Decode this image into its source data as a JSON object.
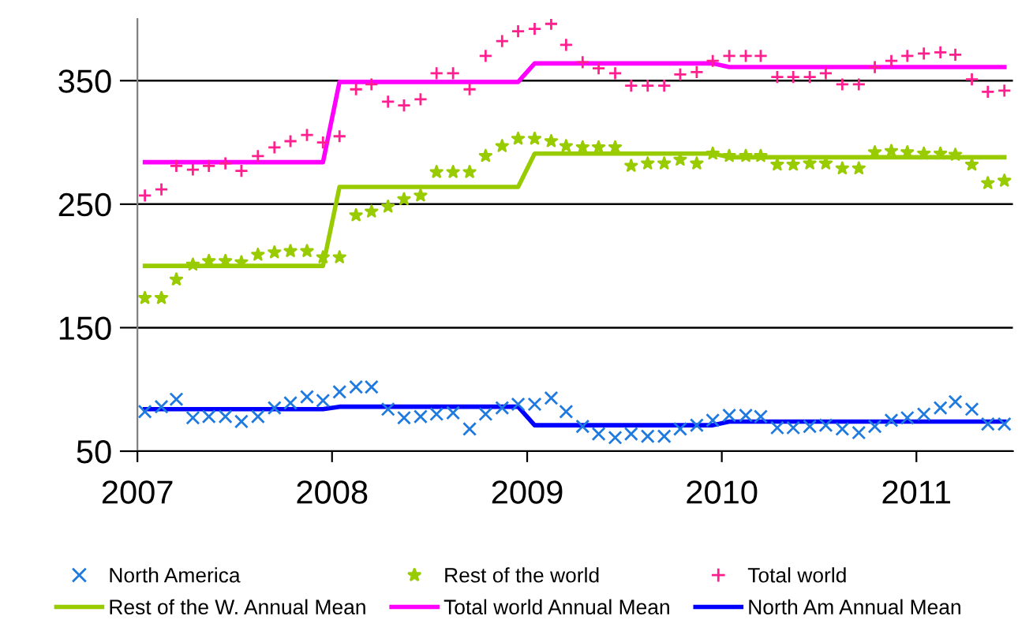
{
  "chart_data": {
    "type": "scatter",
    "x": [
      "2007-01-15",
      "2007-02-15",
      "2007-03-15",
      "2007-04-15",
      "2007-05-15",
      "2007-06-15",
      "2007-07-15",
      "2007-08-15",
      "2007-09-15",
      "2007-10-15",
      "2007-11-15",
      "2007-12-15",
      "2008-01-15",
      "2008-02-15",
      "2008-03-15",
      "2008-04-15",
      "2008-05-15",
      "2008-06-15",
      "2008-07-15",
      "2008-08-15",
      "2008-09-15",
      "2008-10-15",
      "2008-11-15",
      "2008-12-15",
      "2009-01-15",
      "2009-02-15",
      "2009-03-15",
      "2009-04-15",
      "2009-05-15",
      "2009-06-15",
      "2009-07-15",
      "2009-08-15",
      "2009-09-15",
      "2009-10-15",
      "2009-11-15",
      "2009-12-15",
      "2010-01-15",
      "2010-02-15",
      "2010-03-15",
      "2010-04-15",
      "2010-05-15",
      "2010-06-15",
      "2010-07-15",
      "2010-08-15",
      "2010-09-15",
      "2010-10-15",
      "2010-11-15",
      "2010-12-15",
      "2011-01-15",
      "2011-02-15",
      "2011-03-15",
      "2011-04-15",
      "2011-05-15",
      "2011-06-15"
    ],
    "series": [
      {
        "name": "North America",
        "marker": "cross",
        "color": "#1f7ae0",
        "values": [
          82,
          86,
          92,
          77,
          78,
          78,
          74,
          78,
          85,
          89,
          94,
          91,
          98,
          102,
          102,
          84,
          77,
          78,
          80,
          81,
          68,
          80,
          85,
          88,
          88,
          93,
          82,
          70,
          64,
          61,
          64,
          62,
          62,
          68,
          71,
          75,
          79,
          79,
          78,
          69,
          69,
          70,
          71,
          68,
          65,
          70,
          75,
          77,
          80,
          85,
          90,
          84,
          72,
          72
        ]
      },
      {
        "name": "Rest of the world",
        "marker": "star",
        "color": "#99cc00",
        "values": [
          174,
          174,
          189,
          201,
          204,
          204,
          203,
          209,
          211,
          212,
          212,
          207,
          207,
          241,
          244,
          248,
          254,
          257,
          276,
          276,
          276,
          289,
          297,
          303,
          303,
          301,
          297,
          296,
          296,
          296,
          281,
          283,
          283,
          286,
          283,
          291,
          289,
          289,
          289,
          282,
          282,
          283,
          283,
          279,
          279,
          292,
          293,
          292,
          291,
          291,
          290,
          282,
          267,
          269
        ]
      },
      {
        "name": "Total world",
        "marker": "plus",
        "color": "#ff1f8f",
        "values": [
          257,
          262,
          281,
          278,
          281,
          283,
          277,
          289,
          296,
          301,
          306,
          300,
          305,
          343,
          347,
          333,
          330,
          335,
          356,
          356,
          343,
          370,
          382,
          390,
          392,
          396,
          379,
          365,
          360,
          356,
          346,
          346,
          346,
          355,
          357,
          366,
          370,
          370,
          370,
          353,
          353,
          353,
          356,
          347,
          347,
          361,
          366,
          370,
          372,
          373,
          371,
          351,
          341,
          342
        ]
      },
      {
        "name": "Rest of the W. Annual Mean",
        "type": "line",
        "color": "#99cc00",
        "values": [
          200,
          200,
          200,
          200,
          200,
          200,
          200,
          200,
          200,
          200,
          200,
          200,
          264,
          264,
          264,
          264,
          264,
          264,
          264,
          264,
          264,
          264,
          264,
          264,
          291,
          291,
          291,
          291,
          291,
          291,
          291,
          291,
          291,
          291,
          291,
          291,
          288,
          288,
          288,
          288,
          288,
          288,
          288,
          288,
          288,
          288,
          288,
          288,
          288,
          288,
          288,
          288,
          288,
          288
        ]
      },
      {
        "name": "Total world Annual Mean",
        "type": "line",
        "color": "#ff00ff",
        "values": [
          284,
          284,
          284,
          284,
          284,
          284,
          284,
          284,
          284,
          284,
          284,
          284,
          349,
          349,
          349,
          349,
          349,
          349,
          349,
          349,
          349,
          349,
          349,
          349,
          364,
          364,
          364,
          364,
          364,
          364,
          364,
          364,
          364,
          364,
          364,
          364,
          361,
          361,
          361,
          361,
          361,
          361,
          361,
          361,
          361,
          361,
          361,
          361,
          361,
          361,
          361,
          361,
          361,
          361
        ]
      },
      {
        "name": "North Am Annual Mean",
        "type": "line",
        "color": "#0000ff",
        "values": [
          84,
          84,
          84,
          84,
          84,
          84,
          84,
          84,
          84,
          84,
          84,
          84,
          86,
          86,
          86,
          86,
          86,
          86,
          86,
          86,
          86,
          86,
          86,
          86,
          71,
          71,
          71,
          71,
          71,
          71,
          71,
          71,
          71,
          71,
          71,
          71,
          74,
          74,
          74,
          74,
          74,
          74,
          74,
          74,
          74,
          74,
          74,
          74,
          74,
          74,
          74,
          74,
          74,
          74
        ]
      }
    ],
    "xlim": [
      "2007-01-01",
      "2011-07-01"
    ],
    "xticks": [
      {
        "value": "2007-01-01",
        "label": "2007"
      },
      {
        "value": "2008-01-01",
        "label": "2008"
      },
      {
        "value": "2009-01-01",
        "label": "2009"
      },
      {
        "value": "2010-01-01",
        "label": "2010"
      },
      {
        "value": "2011-01-01",
        "label": "2011"
      }
    ],
    "ylim": [
      50,
      400
    ],
    "yticks": [
      50,
      150,
      250,
      350
    ],
    "grid": "y",
    "legend": "bottom"
  }
}
